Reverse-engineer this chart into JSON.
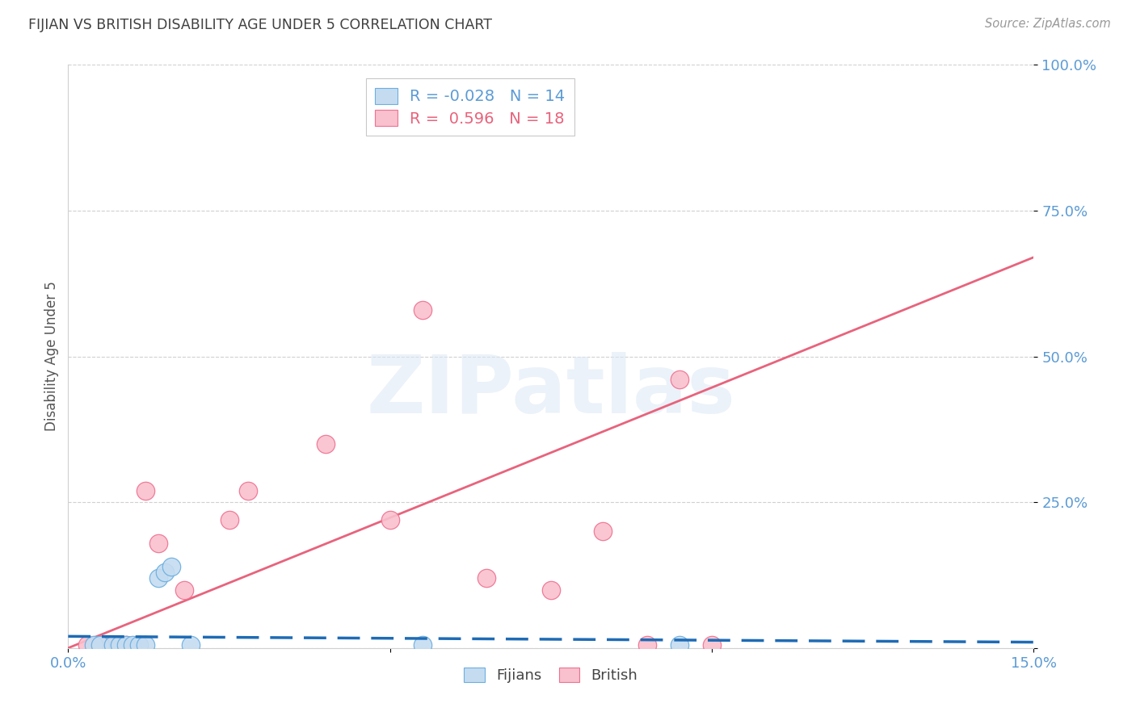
{
  "title": "FIJIAN VS BRITISH DISABILITY AGE UNDER 5 CORRELATION CHART",
  "source": "Source: ZipAtlas.com",
  "ylabel": "Disability Age Under 5",
  "xlim": [
    0.0,
    0.15
  ],
  "ylim": [
    0.0,
    1.0
  ],
  "yticks": [
    0.0,
    0.25,
    0.5,
    0.75,
    1.0
  ],
  "ytick_labels": [
    "",
    "25.0%",
    "50.0%",
    "75.0%",
    "100.0%"
  ],
  "xticks": [
    0.0,
    0.05,
    0.1,
    0.15
  ],
  "xtick_labels": [
    "0.0%",
    "",
    "",
    "15.0%"
  ],
  "fijian_R": -0.028,
  "fijian_N": 14,
  "british_R": 0.596,
  "british_N": 18,
  "fijian_color": "#c5dcf0",
  "british_color": "#f9c0ce",
  "fijian_edge_color": "#6aaee0",
  "british_edge_color": "#f07090",
  "fijian_line_color": "#1e6bb5",
  "british_line_color": "#e8637c",
  "fijian_scatter_x": [
    0.004,
    0.005,
    0.007,
    0.008,
    0.009,
    0.01,
    0.011,
    0.012,
    0.014,
    0.015,
    0.016,
    0.019,
    0.055,
    0.095
  ],
  "fijian_scatter_y": [
    0.005,
    0.005,
    0.005,
    0.005,
    0.005,
    0.005,
    0.005,
    0.005,
    0.12,
    0.13,
    0.14,
    0.005,
    0.005,
    0.005
  ],
  "british_scatter_x": [
    0.003,
    0.005,
    0.007,
    0.009,
    0.012,
    0.014,
    0.018,
    0.025,
    0.028,
    0.04,
    0.05,
    0.055,
    0.065,
    0.075,
    0.083,
    0.09,
    0.095,
    0.1
  ],
  "british_scatter_y": [
    0.005,
    0.005,
    0.005,
    0.005,
    0.27,
    0.18,
    0.1,
    0.22,
    0.27,
    0.35,
    0.22,
    0.58,
    0.12,
    0.1,
    0.2,
    0.005,
    0.46,
    0.005
  ],
  "brit_line_x0": 0.0,
  "brit_line_y0": 0.0,
  "brit_line_x1": 0.15,
  "brit_line_y1": 0.67,
  "fij_line_x0": 0.0,
  "fij_line_y0": 0.02,
  "fij_line_x1": 0.15,
  "fij_line_y1": 0.01,
  "watermark_text": "ZIPatlas",
  "watermark_color": "#dce9f5",
  "background_color": "#ffffff",
  "grid_color": "#d0d0d0",
  "title_color": "#404040",
  "tick_color": "#5b9bd5",
  "legend_blue_text_color": "#5b9bd5",
  "legend_pink_text_color": "#e8637c",
  "legend_N_color": "#333333"
}
